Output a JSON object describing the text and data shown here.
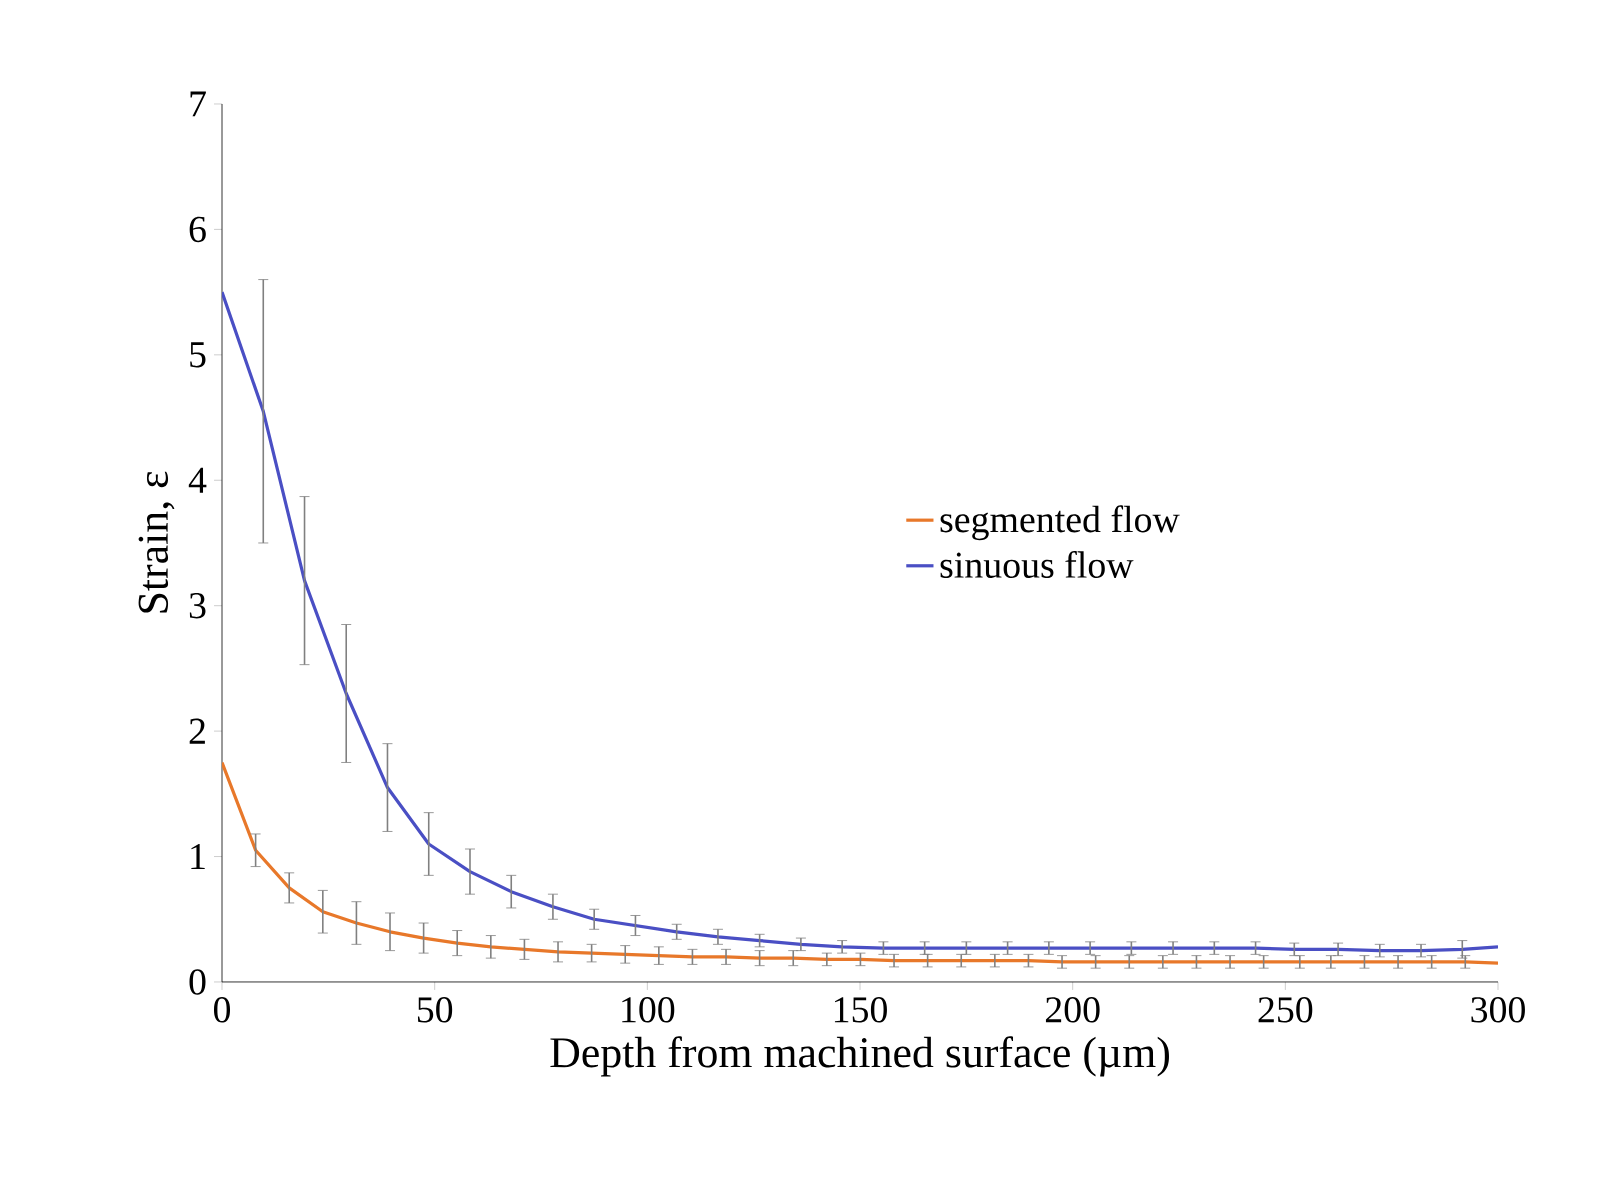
{
  "chart_data": {
    "type": "line",
    "xlabel": "Depth from machined surface (µm)",
    "ylabel": "Strain, ε",
    "xlim": [
      0,
      300
    ],
    "ylim": [
      0,
      7
    ],
    "xticks": [
      0,
      50,
      100,
      150,
      200,
      250,
      300
    ],
    "yticks": [
      0,
      1,
      2,
      3,
      4,
      5,
      6,
      7
    ],
    "legend": "right",
    "grid": false,
    "series": [
      {
        "name": "segmented flow",
        "color": "#e8782a",
        "x": [
          0,
          7.9,
          15.8,
          23.7,
          31.6,
          39.5,
          47.4,
          55.3,
          63.2,
          71.1,
          79,
          86.9,
          94.8,
          102.7,
          110.6,
          118.5,
          126.4,
          134.3,
          142.2,
          150.1,
          158,
          165.9,
          173.8,
          181.7,
          189.6,
          197.5,
          205.4,
          213.3,
          221.2,
          229.1,
          237,
          244.9,
          253.4,
          260.7,
          268.6,
          276.5,
          284.4,
          292.3,
          300
        ],
        "values": [
          1.75,
          1.05,
          0.75,
          0.56,
          0.47,
          0.4,
          0.35,
          0.31,
          0.28,
          0.26,
          0.24,
          0.23,
          0.22,
          0.21,
          0.2,
          0.2,
          0.19,
          0.19,
          0.18,
          0.18,
          0.17,
          0.17,
          0.17,
          0.17,
          0.17,
          0.16,
          0.16,
          0.16,
          0.16,
          0.16,
          0.16,
          0.16,
          0.16,
          0.16,
          0.16,
          0.16,
          0.16,
          0.16,
          0.15
        ],
        "errors": [
          null,
          0.13,
          0.12,
          0.17,
          0.17,
          0.15,
          0.12,
          0.1,
          0.09,
          0.08,
          0.08,
          0.07,
          0.07,
          0.07,
          0.06,
          0.06,
          0.06,
          0.06,
          0.05,
          0.05,
          0.05,
          0.05,
          0.05,
          0.05,
          0.05,
          0.05,
          0.05,
          0.05,
          0.05,
          0.05,
          0.05,
          0.05,
          0.05,
          0.05,
          0.05,
          0.05,
          0.05,
          0.05,
          null
        ]
      },
      {
        "name": "sinuous flow",
        "color": "#4a4fc4",
        "x": [
          0,
          9.7,
          19.4,
          29.2,
          38.9,
          48.6,
          58.3,
          68,
          77.8,
          87.5,
          97.2,
          106.9,
          116.6,
          126.4,
          136.1,
          145.8,
          155.5,
          165.2,
          175,
          184.7,
          194.4,
          204.1,
          213.8,
          223.6,
          233.3,
          243,
          252.1,
          262.4,
          272.2,
          281.9,
          291.6,
          300
        ],
        "values": [
          5.5,
          4.55,
          3.2,
          2.3,
          1.55,
          1.1,
          0.88,
          0.72,
          0.6,
          0.5,
          0.45,
          0.4,
          0.36,
          0.33,
          0.3,
          0.28,
          0.27,
          0.27,
          0.27,
          0.27,
          0.27,
          0.27,
          0.27,
          0.27,
          0.27,
          0.27,
          0.26,
          0.26,
          0.25,
          0.25,
          0.26,
          0.28
        ],
        "errors": [
          null,
          1.05,
          0.67,
          0.55,
          0.35,
          0.25,
          0.18,
          0.13,
          0.1,
          0.08,
          0.08,
          0.06,
          0.06,
          0.05,
          0.05,
          0.05,
          0.05,
          0.05,
          0.05,
          0.05,
          0.05,
          0.05,
          0.05,
          0.05,
          0.05,
          0.05,
          0.05,
          0.05,
          0.05,
          0.05,
          0.07,
          null
        ]
      }
    ]
  }
}
